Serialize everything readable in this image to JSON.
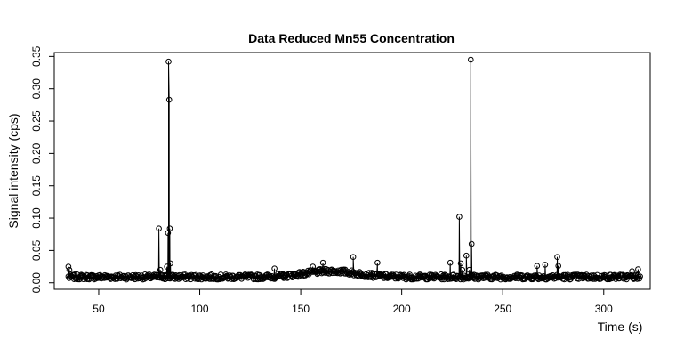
{
  "chart_data": {
    "type": "line",
    "title": "Data Reduced Mn55 Concentration",
    "xlabel": "Time (s)",
    "ylabel": "Signal intensity (cps)",
    "xlim": [
      28,
      323
    ],
    "ylim": [
      -0.01,
      0.356
    ],
    "xticks": [
      50,
      100,
      150,
      200,
      250,
      300
    ],
    "yticks": [
      0.0,
      0.05,
      0.1,
      0.15,
      0.2,
      0.25,
      0.3,
      0.35
    ],
    "ytick_labels": [
      "0.00",
      "0.05",
      "0.10",
      "0.15",
      "0.20",
      "0.25",
      "0.30",
      "0.35"
    ],
    "markers": "open-circle",
    "series_color": "#000000",
    "x_start": 35,
    "x_end": 318,
    "n_points": 800,
    "baseline": 0.009,
    "baseline_noise": 0.004,
    "hump": {
      "center": 165,
      "width": 18,
      "height": 0.009
    },
    "events": [
      {
        "x": 35.0,
        "y": 0.025
      },
      {
        "x": 35.5,
        "y": 0.02
      },
      {
        "x": 79.8,
        "y": 0.084
      },
      {
        "x": 80.5,
        "y": 0.02
      },
      {
        "x": 83.0,
        "y": 0.012
      },
      {
        "x": 83.8,
        "y": 0.025
      },
      {
        "x": 84.3,
        "y": 0.077
      },
      {
        "x": 84.6,
        "y": 0.342
      },
      {
        "x": 84.9,
        "y": 0.283
      },
      {
        "x": 85.2,
        "y": 0.084
      },
      {
        "x": 85.5,
        "y": 0.03
      },
      {
        "x": 86.0,
        "y": 0.012
      },
      {
        "x": 137.0,
        "y": 0.022
      },
      {
        "x": 156.0,
        "y": 0.025
      },
      {
        "x": 161.0,
        "y": 0.031
      },
      {
        "x": 176.0,
        "y": 0.04
      },
      {
        "x": 188.0,
        "y": 0.031
      },
      {
        "x": 224.0,
        "y": 0.031
      },
      {
        "x": 228.5,
        "y": 0.102
      },
      {
        "x": 229.2,
        "y": 0.03
      },
      {
        "x": 230.0,
        "y": 0.02
      },
      {
        "x": 232.0,
        "y": 0.042
      },
      {
        "x": 233.5,
        "y": 0.02
      },
      {
        "x": 234.2,
        "y": 0.345
      },
      {
        "x": 234.6,
        "y": 0.06
      },
      {
        "x": 235.0,
        "y": 0.012
      },
      {
        "x": 267.0,
        "y": 0.026
      },
      {
        "x": 271.0,
        "y": 0.028
      },
      {
        "x": 277.0,
        "y": 0.04
      },
      {
        "x": 277.5,
        "y": 0.026
      },
      {
        "x": 314.0,
        "y": 0.018
      },
      {
        "x": 317.0,
        "y": 0.021
      }
    ]
  }
}
